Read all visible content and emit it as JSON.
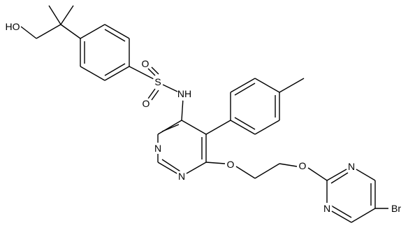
{
  "labels": [
    "HO",
    "S",
    "O",
    "O",
    "NH",
    "N",
    "N",
    "O",
    "O",
    "N",
    "N",
    "Br"
  ]
}
